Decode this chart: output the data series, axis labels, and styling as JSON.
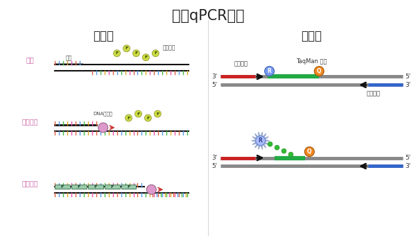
{
  "title": "单重qPCR实验",
  "left_title": "染料法",
  "right_title": "探针法",
  "bg_color": "#ffffff",
  "title_fontsize": 15,
  "subtitle_fontsize": 12,
  "left_labels": [
    "变性",
    "引物退火",
    "延伸反应"
  ],
  "left_label_color": "#cc66aa",
  "tick_colors": [
    "#e06040",
    "#5599ee",
    "#44bb44",
    "#ddaa22",
    "#ee55aa"
  ]
}
